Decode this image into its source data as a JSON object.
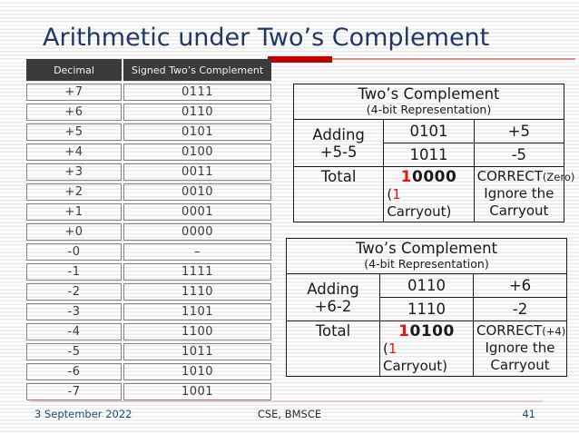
{
  "colors": {
    "title_blue": "#1F3864",
    "accent_red": "#C00000",
    "underline_pink": "#E08B8B",
    "carry_red": "#E81313",
    "footer_blue": "#1F497D",
    "table_header_bg": "#3B3B3B"
  },
  "title": "Arithmetic under Two’s Complement",
  "footer": {
    "date": "3 September 2022",
    "center": "CSE, BMSCE",
    "page": "41"
  },
  "reference_table": {
    "headers": [
      "Decimal",
      "Signed Two’s Complement"
    ],
    "rows": [
      [
        "+7",
        "0111"
      ],
      [
        "+6",
        "0110"
      ],
      [
        "+5",
        "0101"
      ],
      [
        "+4",
        "0100"
      ],
      [
        "+3",
        "0011"
      ],
      [
        "+2",
        "0010"
      ],
      [
        "+1",
        "0001"
      ],
      [
        "+0",
        "0000"
      ],
      [
        "-0",
        "–"
      ],
      [
        "-1",
        "1111"
      ],
      [
        "-2",
        "1110"
      ],
      [
        "-3",
        "1101"
      ],
      [
        "-4",
        "1100"
      ],
      [
        "-5",
        "1011"
      ],
      [
        "-6",
        "1010"
      ],
      [
        "-7",
        "1001"
      ]
    ]
  },
  "example1": {
    "title": "Two’s Complement",
    "subtitle": "(4-bit Representation)",
    "adding": {
      "line1": "Adding",
      "line2": "+5-5"
    },
    "operand1": {
      "bits": "0101",
      "decimal": "+5"
    },
    "operand2": {
      "bits": "1011",
      "decimal": "-5"
    },
    "total": {
      "label": "Total",
      "carry_digit": "1",
      "bits_rest": "0000",
      "paren": "(",
      "carry_note_digit": "1",
      "carry_note_word": "Carryout)",
      "result_word": "CORRECT",
      "result_note": "(Zero)",
      "result_line2": "Ignore the",
      "result_line3": "Carryout"
    }
  },
  "example2": {
    "title": "Two’s Complement",
    "subtitle": "(4-bit Representation)",
    "adding": {
      "line1": "Adding",
      "line2": "+6-2"
    },
    "operand1": {
      "bits": "0110",
      "decimal": "+6"
    },
    "operand2": {
      "bits": "1110",
      "decimal": "-2"
    },
    "total": {
      "label": "Total",
      "carry_digit": "1",
      "bits_rest": "0100",
      "paren": "(",
      "carry_note_digit": "1",
      "carry_note_word": "Carryout)",
      "result_word": "CORRECT",
      "result_note": "(+4)",
      "result_line2": "Ignore the",
      "result_line3": "Carryout"
    }
  }
}
